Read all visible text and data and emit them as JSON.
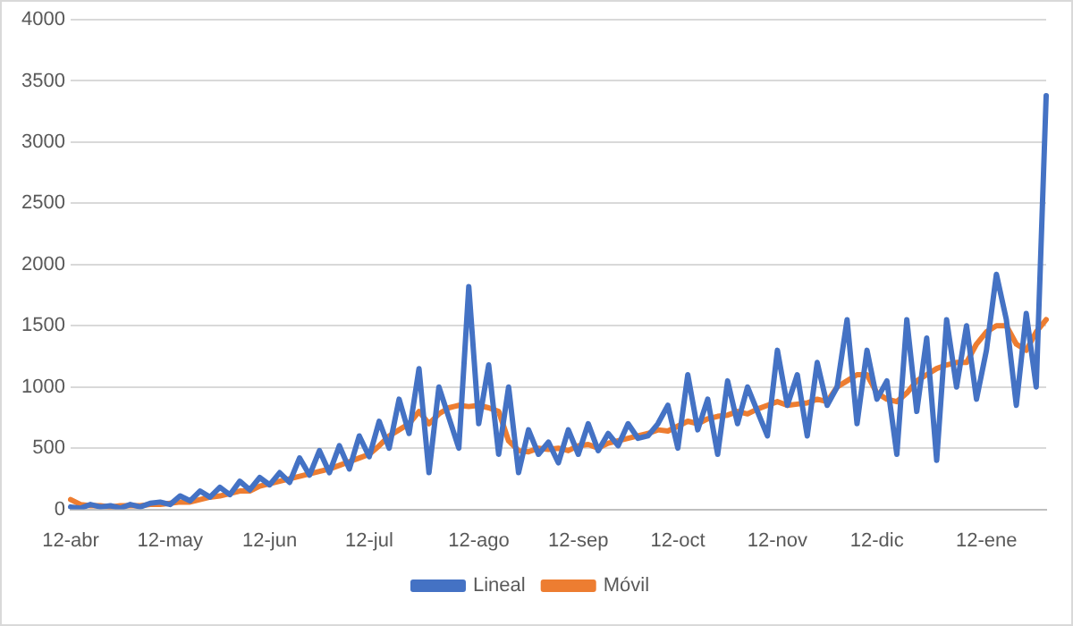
{
  "chart_data": {
    "type": "line",
    "categories": [
      "12-abr",
      null,
      null,
      null,
      null,
      null,
      null,
      null,
      null,
      null,
      "12-may",
      null,
      null,
      null,
      null,
      null,
      null,
      null,
      null,
      null,
      "12-jun",
      null,
      null,
      null,
      null,
      null,
      null,
      null,
      null,
      null,
      "12-jul",
      null,
      null,
      null,
      null,
      null,
      null,
      null,
      null,
      null,
      null,
      "12-ago",
      null,
      null,
      null,
      null,
      null,
      null,
      null,
      null,
      null,
      "12-sep",
      null,
      null,
      null,
      null,
      null,
      null,
      null,
      null,
      null,
      "12-oct",
      null,
      null,
      null,
      null,
      null,
      null,
      null,
      null,
      null,
      "12-nov",
      null,
      null,
      null,
      null,
      null,
      null,
      null,
      null,
      null,
      "12-dic",
      null,
      null,
      null,
      null,
      null,
      null,
      null,
      null,
      null,
      null,
      "12-ene",
      null,
      null,
      null,
      null,
      null,
      null
    ],
    "series": [
      {
        "name": "Lineal",
        "color": "#4472c4",
        "values": [
          20,
          10,
          40,
          20,
          30,
          10,
          40,
          20,
          50,
          60,
          40,
          110,
          70,
          150,
          100,
          180,
          120,
          230,
          160,
          260,
          200,
          300,
          220,
          420,
          280,
          480,
          300,
          520,
          330,
          600,
          430,
          720,
          500,
          900,
          620,
          1150,
          300,
          1000,
          750,
          500,
          1820,
          700,
          1180,
          450,
          1000,
          300,
          650,
          450,
          550,
          380,
          650,
          450,
          700,
          480,
          620,
          520,
          700,
          580,
          600,
          700,
          850,
          500,
          1100,
          650,
          900,
          450,
          1050,
          700,
          1000,
          800,
          600,
          1300,
          850,
          1100,
          600,
          1200,
          850,
          1000,
          1550,
          700,
          1300,
          900,
          1050,
          450,
          1550,
          800,
          1400,
          400,
          1550,
          1000,
          1500,
          900,
          1300,
          1920,
          1550,
          850,
          1600,
          1000,
          3380
        ]
      },
      {
        "name": "Móvil",
        "color": "#ed7d31",
        "values": [
          80,
          40,
          30,
          30,
          20,
          30,
          30,
          30,
          40,
          40,
          50,
          60,
          60,
          80,
          100,
          110,
          130,
          150,
          150,
          190,
          210,
          230,
          250,
          270,
          290,
          310,
          330,
          360,
          390,
          420,
          450,
          520,
          600,
          650,
          700,
          800,
          700,
          780,
          830,
          850,
          840,
          850,
          830,
          800,
          560,
          480,
          470,
          500,
          490,
          500,
          480,
          520,
          530,
          500,
          540,
          560,
          580,
          600,
          620,
          650,
          640,
          680,
          720,
          700,
          740,
          760,
          770,
          800,
          780,
          820,
          850,
          880,
          850,
          860,
          870,
          900,
          880,
          1000,
          1050,
          1100,
          1100,
          950,
          900,
          880,
          950,
          1050,
          1100,
          1150,
          1180,
          1200,
          1200,
          1350,
          1450,
          1500,
          1500,
          1350,
          1300,
          1450,
          1550
        ]
      }
    ],
    "ylim": [
      0,
      4000
    ],
    "yticks": [
      0,
      500,
      1000,
      1500,
      2000,
      2500,
      3000,
      3500,
      4000
    ],
    "grid": "y",
    "legend": "bottom",
    "marker": "none",
    "line_style": "solid"
  }
}
